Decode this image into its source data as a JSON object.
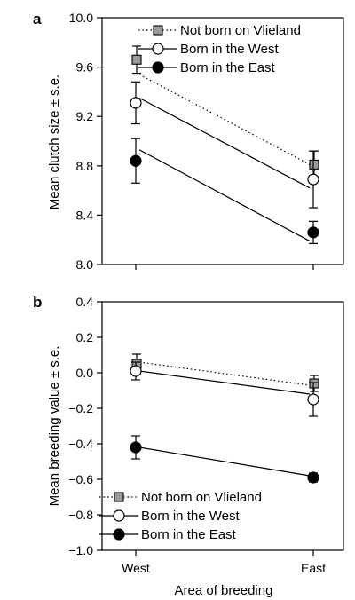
{
  "chart_data": [
    {
      "panel": "a",
      "type": "line",
      "categories": [
        "West",
        "East"
      ],
      "ylabel": "Mean clutch size ± s.e.",
      "ylim": [
        8.0,
        10.0
      ],
      "yticks": [
        "8.0",
        "8.4",
        "8.8",
        "9.2",
        "9.6",
        "10.0"
      ],
      "legend_position": "top-right",
      "series": [
        {
          "name": "Not born on Vlieland",
          "marker": "square",
          "line": "dotted",
          "color": "#9a9a9a",
          "values": [
            9.66,
            8.81
          ],
          "err": [
            0.11,
            0.11
          ],
          "fit": [
            9.54,
            8.81
          ]
        },
        {
          "name": "Born in the West",
          "marker": "open-circle",
          "line": "solid",
          "color": "#ffffff",
          "values": [
            9.31,
            8.69
          ],
          "err": [
            0.17,
            0.23
          ],
          "fit": [
            9.35,
            8.62
          ]
        },
        {
          "name": "Born in the East",
          "marker": "filled-circle",
          "line": "solid",
          "color": "#000000",
          "values": [
            8.84,
            8.26
          ],
          "err": [
            0.18,
            0.09
          ],
          "fit": [
            8.93,
            8.19
          ]
        }
      ]
    },
    {
      "panel": "b",
      "type": "line",
      "categories": [
        "West",
        "East"
      ],
      "xlabel": "Area of breeding",
      "ylabel": "Mean breeding value ± s.e.",
      "ylim": [
        -1.0,
        0.4
      ],
      "yticks": [
        "−1.0",
        "−0.8",
        "−0.6",
        "−0.4",
        "−0.2",
        "0.0",
        "0.2",
        "0.4"
      ],
      "legend_position": "bottom-left",
      "series": [
        {
          "name": "Not born on Vlieland",
          "marker": "square",
          "line": "dotted",
          "color": "#9a9a9a",
          "values": [
            0.05,
            -0.06
          ],
          "err": [
            0.055,
            0.045
          ],
          "fit": [
            0.06,
            -0.07
          ]
        },
        {
          "name": "Born in the West",
          "marker": "open-circle",
          "line": "solid",
          "color": "#ffffff",
          "values": [
            0.01,
            -0.15
          ],
          "err": [
            0.05,
            0.095
          ],
          "fit": [
            0.01,
            -0.12
          ]
        },
        {
          "name": "Born in the East",
          "marker": "filled-circle",
          "line": "solid",
          "color": "#000000",
          "values": [
            -0.42,
            -0.59
          ],
          "err": [
            0.065,
            0.025
          ],
          "fit": [
            -0.42,
            -0.58
          ]
        }
      ]
    }
  ]
}
